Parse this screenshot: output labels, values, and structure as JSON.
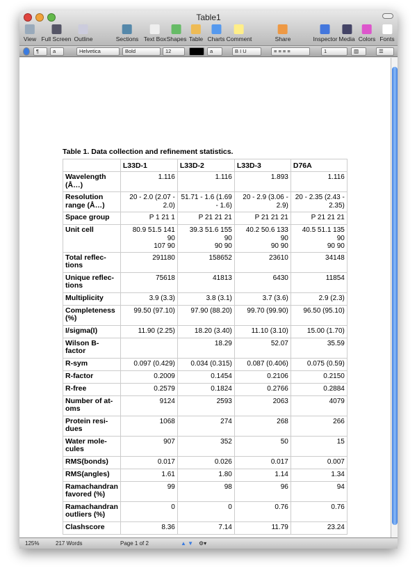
{
  "window": {
    "title": "Table1"
  },
  "toolbar": [
    {
      "label": "View",
      "icon": "view-icon"
    },
    {
      "label": "Full Screen",
      "icon": "fullscreen-icon"
    },
    {
      "label": "Outline",
      "icon": "outline-icon"
    },
    {
      "label": "Sections",
      "icon": "sections-icon"
    },
    {
      "label": "Text Box",
      "icon": "textbox-icon"
    },
    {
      "label": "Shapes",
      "icon": "shapes-icon"
    },
    {
      "label": "Table",
      "icon": "table-icon"
    },
    {
      "label": "Charts",
      "icon": "charts-icon"
    },
    {
      "label": "Comment",
      "icon": "comment-icon"
    },
    {
      "label": "Share",
      "icon": "share-icon"
    },
    {
      "label": "Inspector",
      "icon": "inspector-icon"
    },
    {
      "label": "Media",
      "icon": "media-icon"
    },
    {
      "label": "Colors",
      "icon": "colors-icon"
    },
    {
      "label": "Fonts",
      "icon": "fonts-icon"
    }
  ],
  "format_bar": {
    "paragraph_style": "¶",
    "char_style": "a",
    "font": "Helvetica",
    "typeface": "Bold",
    "size": "12",
    "text_color": "#000000",
    "line_spacing": "1"
  },
  "document": {
    "caption": "Table 1.  Data collection and refinement statistics.",
    "headers": [
      "",
      "L33D-1",
      "L33D-2",
      "L33D-3",
      "D76A"
    ],
    "rows": [
      [
        "Wavelength\n(Å…)",
        "1.116",
        "1.116",
        "1.893",
        "1.116"
      ],
      [
        "Resolution\nrange (Å…)",
        "20  - 2.0 (2.07 -\n2.0)",
        "51.71  - 1.6 (1.69\n- 1.6)",
        "20  - 2.9 (3.06 -\n2.9)",
        "20  - 2.35 (2.43 -\n2.35)"
      ],
      [
        "Space group",
        "P 1 21 1",
        "P 21 21 21",
        "P 21 21 21",
        "P 21 21 21"
      ],
      [
        "Unit cell",
        "80.9 51.5 141 90\n107 90",
        "39.3 51.6 155 90\n90 90",
        "40.2 50.6 133 90\n90 90",
        "40.5 51.1 135 90\n90 90"
      ],
      [
        "Total reflec-\ntions",
        "291180",
        "158652",
        "23610",
        "34148"
      ],
      [
        "Unique reflec-\ntions",
        "75618",
        "41813",
        "6430",
        "11854"
      ],
      [
        "Multiplicity",
        "3.9 (3.3)",
        "3.8 (3.1)",
        "3.7 (3.6)",
        "2.9 (2.3)"
      ],
      [
        "Completeness\n(%)",
        "99.50 (97.10)",
        "97.90 (88.20)",
        "99.70 (99.90)",
        "96.50 (95.10)"
      ],
      [
        "I/sigma(I)",
        "11.90 (2.25)",
        "18.20 (3.40)",
        "11.10 (3.10)",
        "15.00 (1.70)"
      ],
      [
        "Wilson B-\nfactor",
        "",
        "18.29",
        "52.07",
        "35.59"
      ],
      [
        "R-sym",
        "0.097 (0.429)",
        "0.034 (0.315)",
        "0.087 (0.406)",
        "0.075 (0.59)"
      ],
      [
        "R-factor",
        "0.2009",
        "0.1454",
        "0.2106",
        "0.2150"
      ],
      [
        "R-free",
        "0.2579",
        "0.1824",
        "0.2766",
        "0.2884"
      ],
      [
        "Number of at-\noms",
        "9124",
        "2593",
        "2063",
        "4079"
      ],
      [
        "Protein resi-\ndues",
        "1068",
        "274",
        "268",
        "266"
      ],
      [
        "Water mole-\ncules",
        "907",
        "352",
        "50",
        "15"
      ],
      [
        "RMS(bonds)",
        "0.017",
        "0.026",
        "0.017",
        "0.007"
      ],
      [
        "RMS(angles)",
        "1.61",
        "1.80",
        "1.14",
        "1.34"
      ],
      [
        "Ramachandran\nfavored (%)",
        "99",
        "98",
        "96",
        "94"
      ],
      [
        "Ramachandran\noutliers (%)",
        "0",
        "0",
        "0.76",
        "0.76"
      ],
      [
        "Clashscore",
        "8.36",
        "7.14",
        "11.79",
        "23.24"
      ]
    ]
  },
  "status": {
    "zoom": "125%",
    "words": "217 Words",
    "page": "Page 1 of 2"
  }
}
